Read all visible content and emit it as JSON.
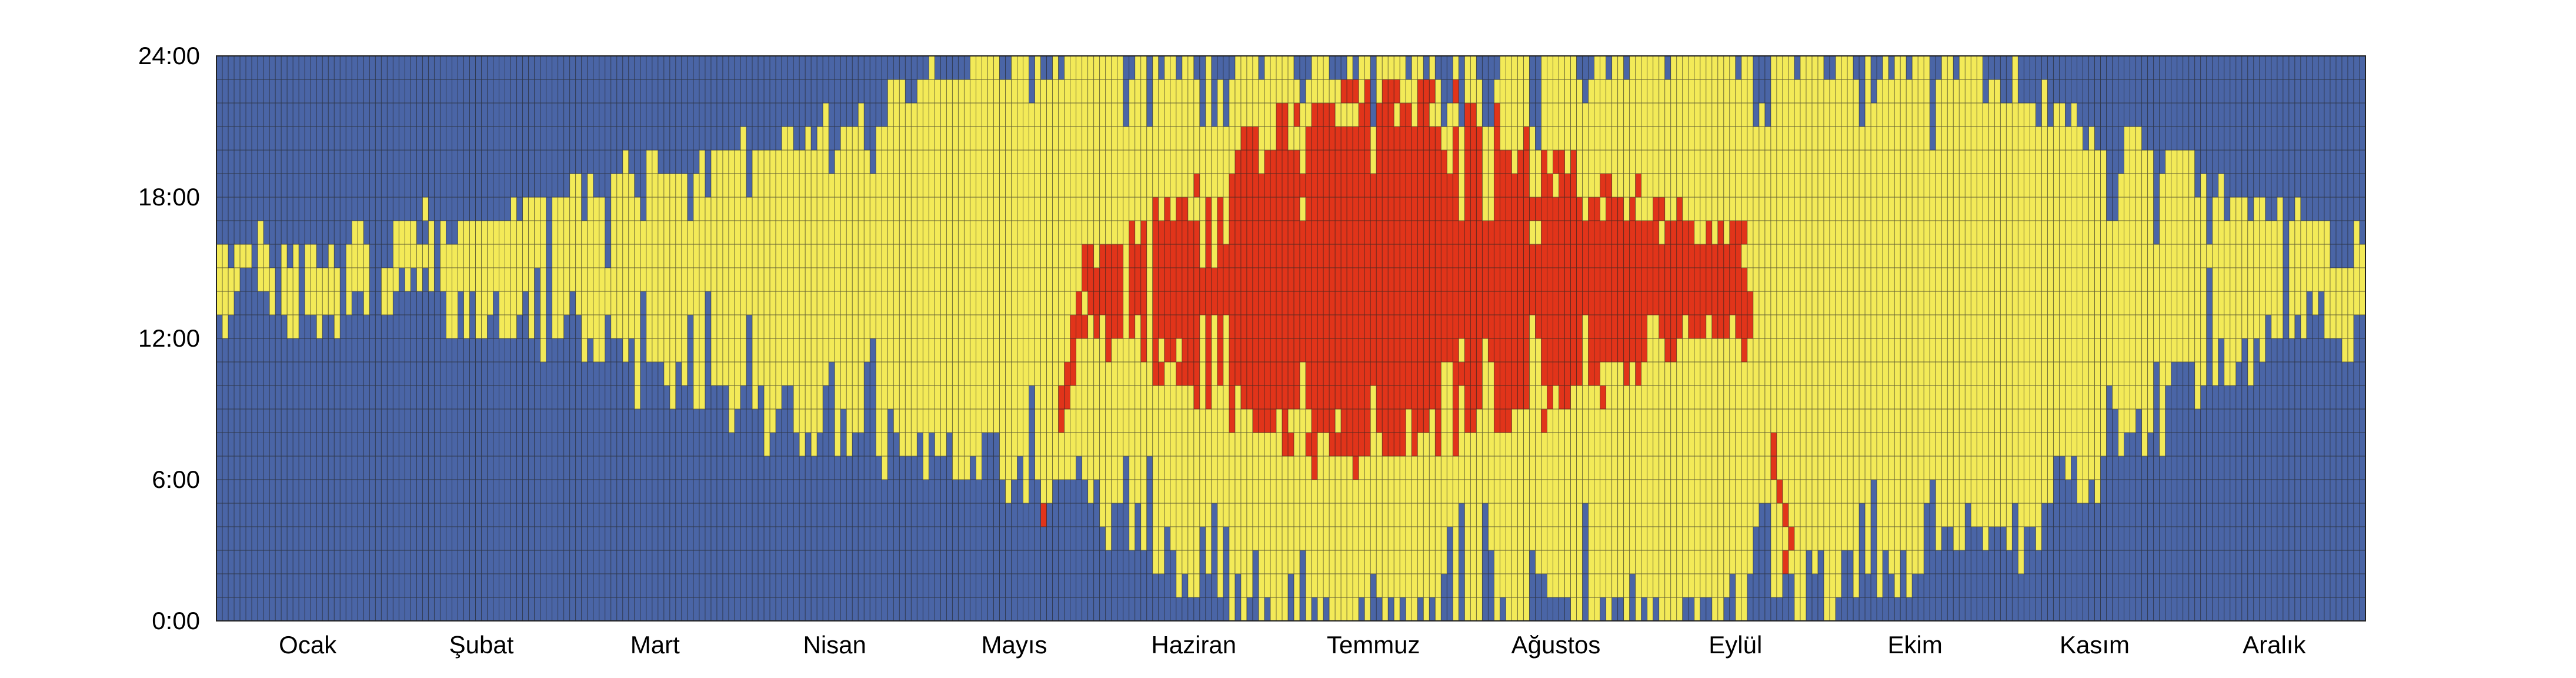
{
  "chart_data": {
    "type": "heatmap",
    "title": "",
    "xlabel": "",
    "ylabel": "",
    "y_ticks": [
      "0:00",
      "6:00",
      "12:00",
      "18:00",
      "24:00"
    ],
    "y_tick_values": [
      0,
      6,
      12,
      18,
      24
    ],
    "ylim": [
      0,
      24
    ],
    "x_ticks": [
      "Ocak",
      "Şubat",
      "Mart",
      "Nisan",
      "Mayıs",
      "Haziran",
      "Temmuz",
      "Ağustos",
      "Eylül",
      "Ekim",
      "Kasım",
      "Aralık"
    ],
    "x_range_days": [
      1,
      365
    ],
    "hours_per_day": 24,
    "categories": [
      "cold",
      "mild",
      "hot"
    ],
    "colors": {
      "cold": "#4a65a6",
      "mild": "#f3ea58",
      "hot": "#e1341a",
      "grid": "#222222"
    },
    "days_per_month": [
      31,
      28,
      31,
      30,
      31,
      30,
      31,
      31,
      30,
      31,
      30,
      31
    ],
    "warm_window_start_hour": [
      12.8,
      13.0,
      13.2,
      13.3,
      13.2,
      12.5,
      11.2,
      10.3,
      9.4,
      8.6,
      7.8,
      7.3,
      7.0,
      6.5,
      5.0,
      3.0,
      1.5,
      0.6,
      0.3,
      0.2,
      0.2,
      0.3,
      0.3,
      0.4,
      0.3,
      0.5,
      1.0,
      2.0,
      3.0,
      3.5,
      4.5,
      6.5,
      8.8,
      11.0,
      11.8,
      12.4
    ],
    "warm_window_end_hour": [
      15.5,
      15.7,
      16.0,
      16.5,
      17.3,
      18.0,
      18.6,
      19.3,
      19.8,
      20.5,
      21.3,
      22.6,
      23.6,
      24.0,
      24.0,
      24.0,
      24.0,
      24.0,
      24.0,
      24.0,
      24.0,
      24.0,
      24.0,
      24.0,
      24.0,
      24.0,
      24.0,
      24.0,
      24.0,
      23.5,
      22.0,
      20.5,
      19.4,
      18.4,
      17.0,
      16.0
    ],
    "hot_window_start_hour": [
      0,
      0,
      0,
      0,
      0,
      0,
      0,
      0,
      0,
      0,
      0,
      0,
      0,
      0,
      13.2,
      11.5,
      10.0,
      8.5,
      7.5,
      7.5,
      8.0,
      8.5,
      9.5,
      11.0,
      12.5,
      13.0,
      0,
      0,
      0,
      0,
      0,
      0,
      0,
      0,
      0,
      0
    ],
    "hot_window_end_hour": [
      0,
      0,
      0,
      0,
      0,
      0,
      0,
      0,
      0,
      0,
      0,
      0,
      0,
      0,
      15.5,
      16.8,
      18.5,
      20.5,
      22.0,
      22.5,
      22.0,
      20.5,
      19.0,
      18.0,
      17.0,
      16.5,
      0,
      0,
      0,
      0,
      0,
      0,
      0,
      0,
      0,
      0
    ]
  }
}
